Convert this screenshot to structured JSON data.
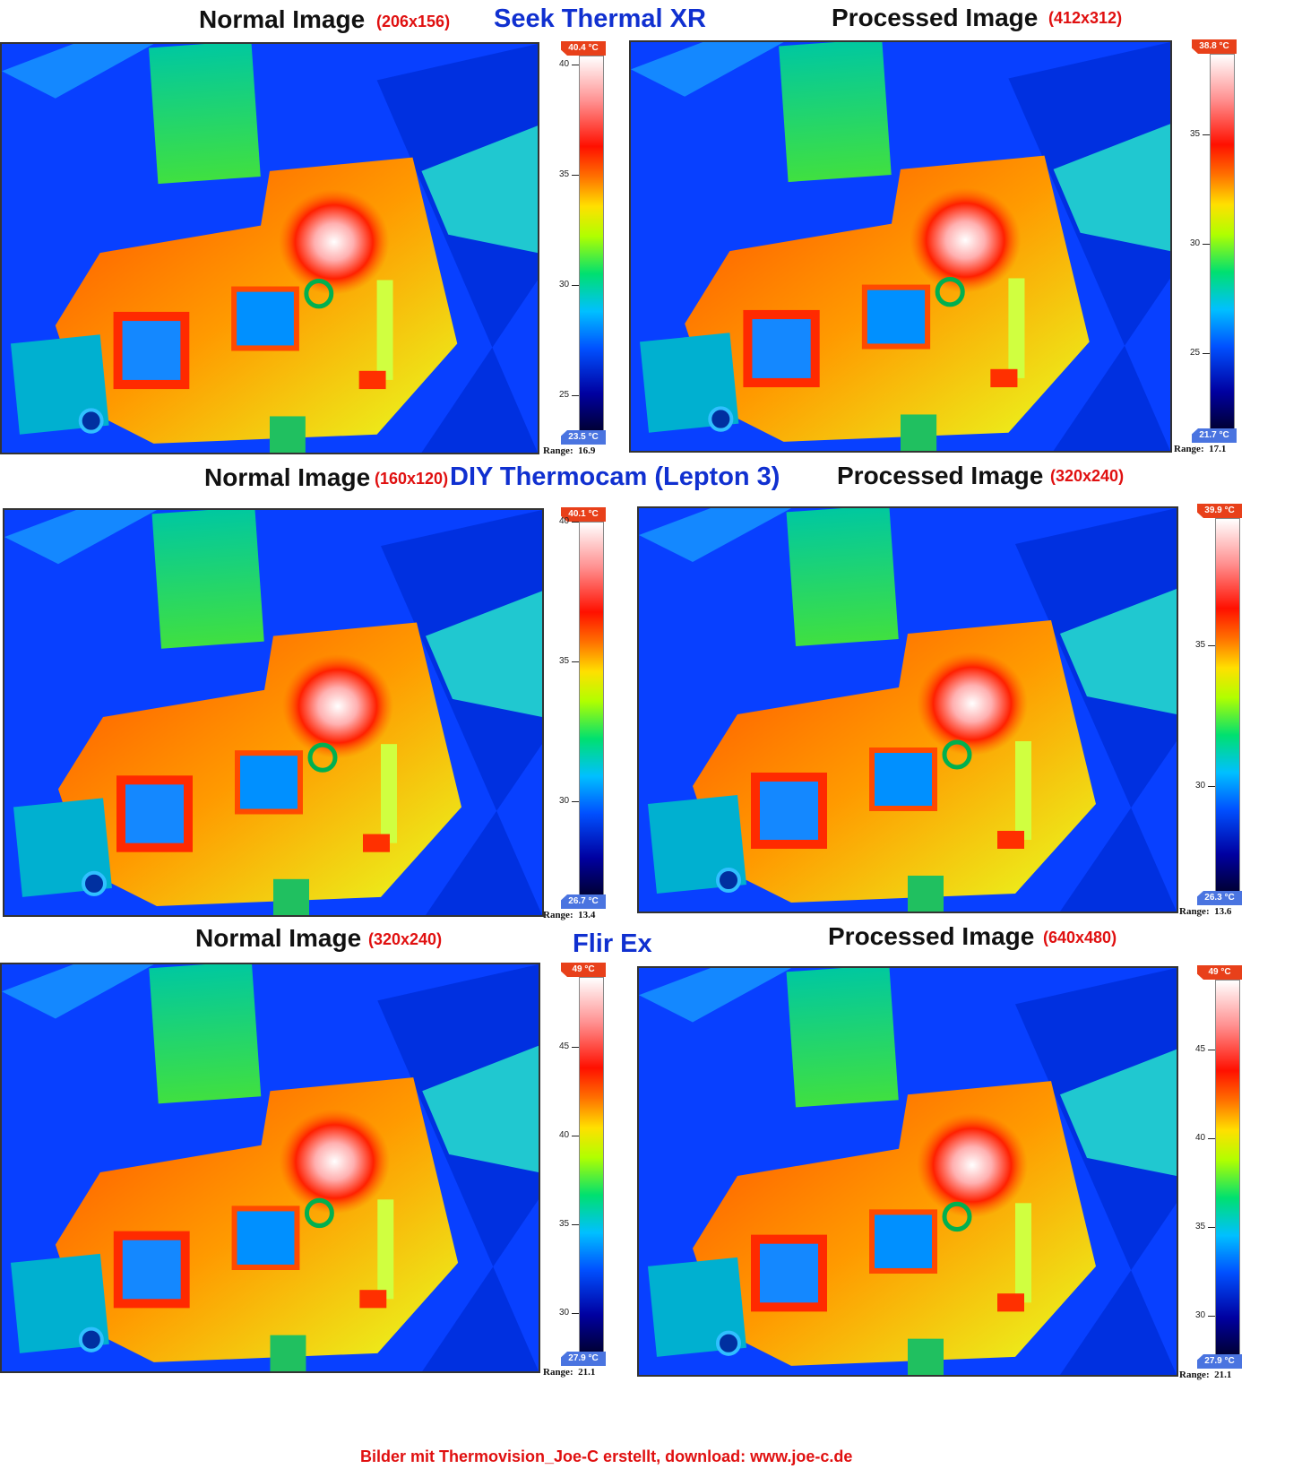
{
  "rows": [
    {
      "camera": "Seek Thermal XR",
      "left": {
        "label": "Normal Image",
        "resolution": "(206x156)",
        "scale": {
          "max": "40.4 °C",
          "min": "23.5 °C",
          "range_label": "Range:",
          "range_value": "16.9",
          "ticks": [
            "40",
            "35",
            "30",
            "25"
          ]
        }
      },
      "right": {
        "label": "Processed Image",
        "resolution": "(412x312)",
        "scale": {
          "max": "38.8 °C",
          "min": "21.7 °C",
          "range_label": "Range:",
          "range_value": "17.1",
          "ticks": [
            "35",
            "30",
            "25"
          ]
        }
      }
    },
    {
      "camera": "DIY Thermocam (Lepton 3)",
      "left": {
        "label": "Normal Image",
        "resolution": "(160x120)",
        "scale": {
          "max": "40.1 °C",
          "min": "26.7 °C",
          "range_label": "Range:",
          "range_value": "13.4",
          "ticks": [
            "40",
            "35",
            "30"
          ]
        }
      },
      "right": {
        "label": "Processed Image",
        "resolution": "(320x240)",
        "scale": {
          "max": "39.9 °C",
          "min": "26.3 °C",
          "range_label": "Range:",
          "range_value": "13.6",
          "ticks": [
            "35",
            "30"
          ]
        }
      }
    },
    {
      "camera": "Flir Ex",
      "left": {
        "label": "Normal Image",
        "resolution": "(320x240)",
        "scale": {
          "max": "49 °C",
          "min": "27.9 °C",
          "range_label": "Range:",
          "range_value": "21.1",
          "ticks": [
            "45",
            "40",
            "35",
            "30"
          ]
        }
      },
      "right": {
        "label": "Processed Image",
        "resolution": "(640x480)",
        "scale": {
          "max": "49 °C",
          "min": "27.9 °C",
          "range_label": "Range:",
          "range_value": "21.1",
          "ticks": [
            "45",
            "40",
            "35",
            "30"
          ]
        }
      }
    }
  ],
  "footer": "Bilder mit Thermovision_Joe-C erstellt, download: www.joe-c.de",
  "colors": {
    "camera_title": "#1030d0",
    "resolution": "#e01010",
    "palette": [
      "#000033",
      "#0000a0",
      "#0050ff",
      "#00c0ff",
      "#00e070",
      "#b0ff00",
      "#ffe000",
      "#ff7000",
      "#ff1000",
      "#ff9090",
      "#ffffff"
    ]
  }
}
